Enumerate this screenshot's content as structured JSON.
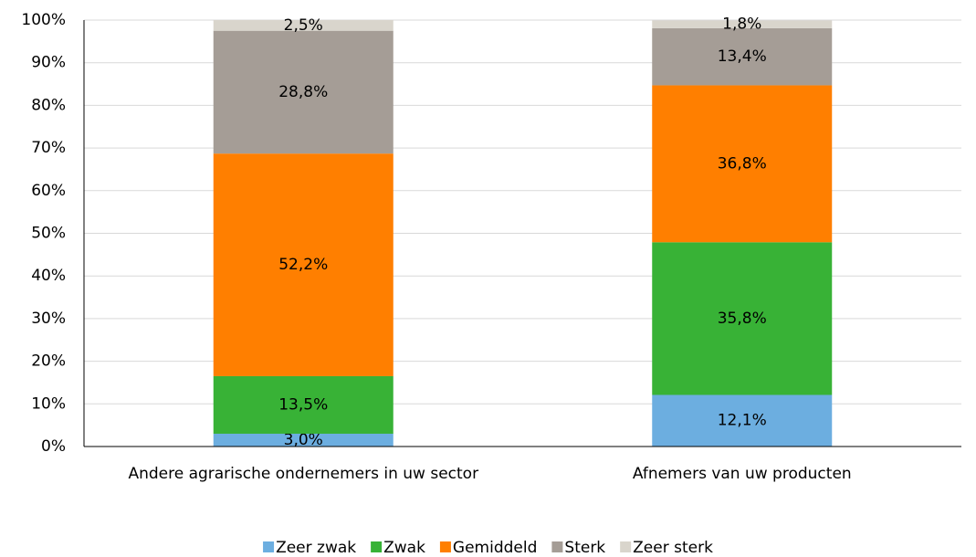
{
  "chart_data": {
    "type": "stacked_bar",
    "categories": [
      "Andere agrarische ondernemers in uw sector",
      "Afnemers van uw producten"
    ],
    "series": [
      {
        "name": "Zeer zwak",
        "color": "#6caee0",
        "values": [
          3.0,
          12.1
        ],
        "value_labels": [
          "3,0%",
          "12,1%"
        ]
      },
      {
        "name": "Zwak",
        "color": "#38b236",
        "values": [
          13.5,
          35.8
        ],
        "value_labels": [
          "13,5%",
          "35,8%"
        ]
      },
      {
        "name": "Gemiddeld",
        "color": "#ff7f00",
        "values": [
          52.2,
          36.8
        ],
        "value_labels": [
          "52,2%",
          "36,8%"
        ]
      },
      {
        "name": "Sterk",
        "color": "#a59d96",
        "values": [
          28.8,
          13.4
        ],
        "value_labels": [
          "28,8%",
          "13,4%"
        ]
      },
      {
        "name": "Zeer sterk",
        "color": "#d9d5cc",
        "values": [
          2.5,
          1.8
        ],
        "value_labels": [
          "2,5%",
          "1,8%"
        ]
      }
    ],
    "ylim": [
      0,
      100
    ],
    "yticks": [
      {
        "value": 0,
        "label": "0%"
      },
      {
        "value": 10,
        "label": "10%"
      },
      {
        "value": 20,
        "label": "20%"
      },
      {
        "value": 30,
        "label": "30%"
      },
      {
        "value": 40,
        "label": "40%"
      },
      {
        "value": 50,
        "label": "50%"
      },
      {
        "value": 60,
        "label": "60%"
      },
      {
        "value": 70,
        "label": "70%"
      },
      {
        "value": 80,
        "label": "80%"
      },
      {
        "value": 90,
        "label": "90%"
      },
      {
        "value": 100,
        "label": "100%"
      }
    ],
    "grid": true,
    "legend": "bottom"
  }
}
